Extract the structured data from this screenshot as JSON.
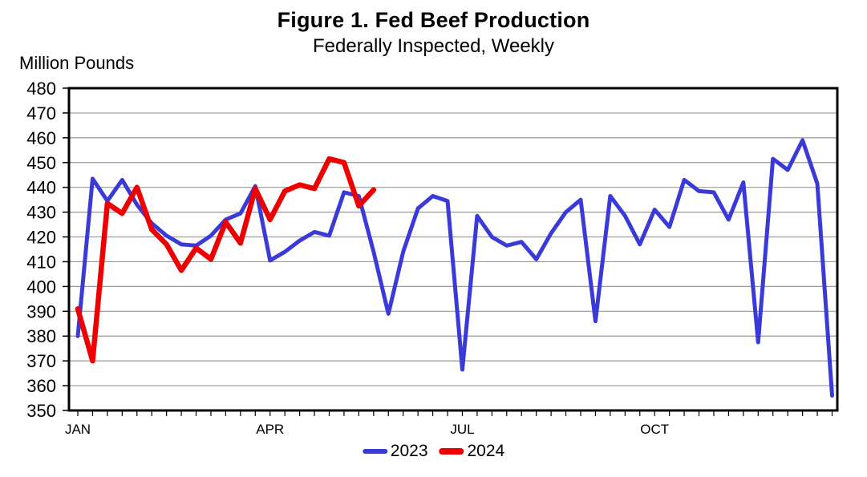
{
  "header": {
    "title": "Figure 1. Fed Beef Production",
    "subtitle": "Federally Inspected, Weekly"
  },
  "chart_data": {
    "type": "line",
    "title": "Figure 1. Fed Beef Production",
    "subtitle": "Federally Inspected, Weekly",
    "y_axis_label": "Million Pounds",
    "xlabel": "",
    "ylabel": "Million Pounds",
    "ylim": [
      350,
      480
    ],
    "y_ticks": [
      350,
      360,
      370,
      380,
      390,
      400,
      410,
      420,
      430,
      440,
      450,
      460,
      470,
      480
    ],
    "x_unit": "week-of-year",
    "x_tick_labels": [
      {
        "label": "JAN",
        "week": 1
      },
      {
        "label": "APR",
        "week": 14
      },
      {
        "label": "JUL",
        "week": 27
      },
      {
        "label": "OCT",
        "week": 40
      }
    ],
    "grid": "horizontal-only",
    "legend_position": "bottom-center",
    "axis_color": "#000000",
    "gridline_color": "#999999",
    "series": [
      {
        "name": "2023",
        "color": "#3a3ad9",
        "stroke_width": 5,
        "values": [
          380,
          443.5,
          434.5,
          443,
          433,
          425.5,
          420.5,
          417,
          416.5,
          420.5,
          427,
          429.5,
          440.5,
          410.5,
          414,
          418.5,
          422,
          420.5,
          438,
          436.5,
          414,
          389,
          414,
          431.5,
          436.5,
          434.5,
          366.5,
          428.5,
          420,
          416.5,
          418,
          411,
          421.5,
          430,
          435,
          386,
          436.5,
          428.5,
          417,
          431,
          424,
          443,
          438.5,
          438,
          427,
          442,
          377.5,
          451.5,
          447,
          459,
          441.5,
          356
        ]
      },
      {
        "name": "2024",
        "color": "#ee0000",
        "stroke_width": 6.5,
        "values": [
          391,
          370,
          433.5,
          429.5,
          440,
          423,
          417,
          406.5,
          415.5,
          411,
          426,
          417.5,
          439.5,
          427,
          438.5,
          441,
          439.5,
          451.5,
          450,
          432.5,
          439
        ]
      }
    ]
  }
}
